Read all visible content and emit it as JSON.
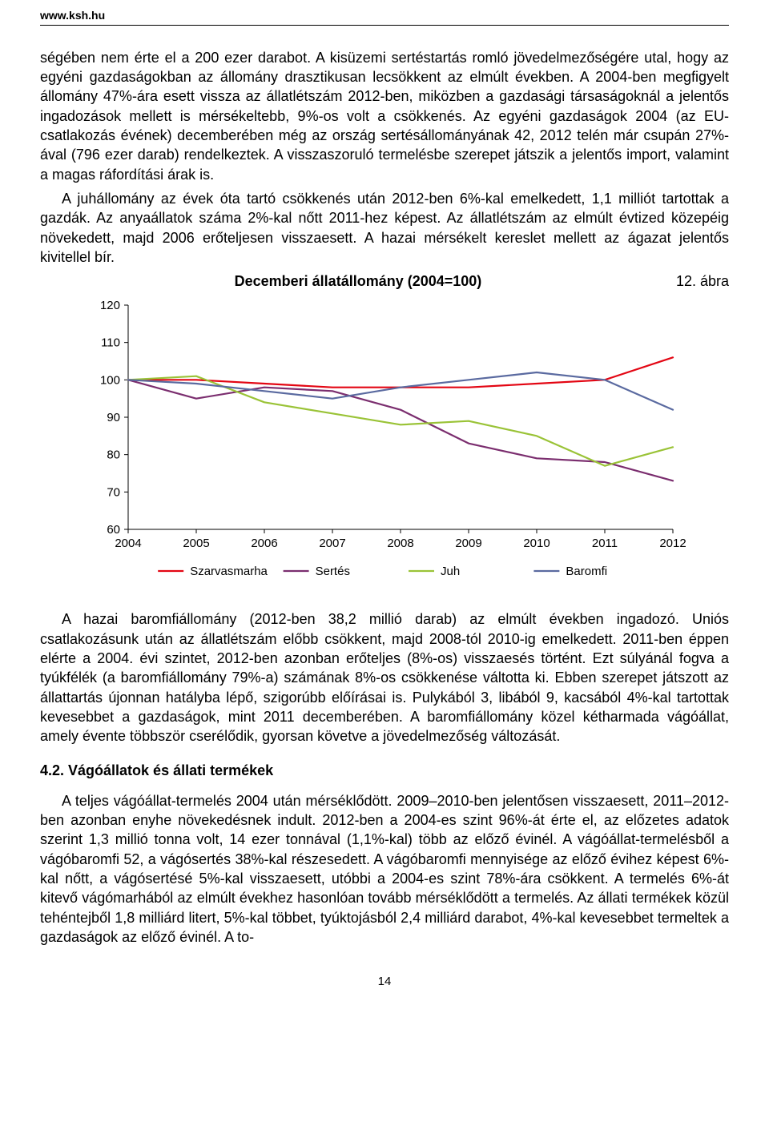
{
  "header": {
    "site_url": "www.ksh.hu"
  },
  "para1_a": "ségében nem érte el a 200 ezer darabot. A kisüzemi sertéstartás romló jövedelmezőségére utal, hogy az egyéni gazdaságokban az állomány drasztikusan lecsökkent az elmúlt években. A 2004-ben megfigyelt állomány 47%-ára esett vissza az állatlétszám 2012-ben, miközben a gazdasági társaságoknál a jelentős ingadozások mellett is mérsékeltebb, 9%-os volt a csökkenés. Az egyéni gazdaságok 2004 (az EU-csatlakozás évének) decemberében még az ország sertésállományának 42, 2012 telén már csupán 27%-ával (796 ezer darab) rendelkeztek. A visszaszoruló termelésbe szerepet játszik a jelentős import, valamint a magas ráfordítási árak is.",
  "para1_b": "A juhállomány az évek óta tartó csökkenés után 2012-ben 6%-kal emelkedett, 1,1 milliót tartottak a gazdák. Az anyaállatok száma 2%-kal nőtt 2011-hez képest. Az állatlétszám az elmúlt évtized közepéig növekedett, majd 2006 erőteljesen visszaesett. A hazai mérsékelt kereslet mellett az ágazat jelentős kivitellel bír.",
  "figure_label": "12. ábra",
  "chart": {
    "type": "line",
    "title": "Decemberi állatállomány (2004=100)",
    "y_unit_label": "%",
    "categories": [
      "2004",
      "2005",
      "2006",
      "2007",
      "2008",
      "2009",
      "2010",
      "2011",
      "2012"
    ],
    "ylim": [
      60,
      120
    ],
    "ytick_step": 10,
    "background_color": "#ffffff",
    "axis_color": "#000000",
    "grid": false,
    "line_width": 2.2,
    "series": [
      {
        "name": "Szarvasmarha",
        "color": "#e30613",
        "values": [
          100,
          100,
          99,
          98,
          98,
          98,
          99,
          100,
          106
        ]
      },
      {
        "name": "Sertés",
        "color": "#7b2e6f",
        "values": [
          100,
          95,
          98,
          97,
          92,
          83,
          79,
          78,
          73
        ]
      },
      {
        "name": "Juh",
        "color": "#9ac337",
        "values": [
          100,
          101,
          94,
          91,
          88,
          89,
          85,
          77,
          82
        ]
      },
      {
        "name": "Baromfi",
        "color": "#5a6aa0",
        "values": [
          100,
          99,
          97,
          95,
          98,
          100,
          102,
          100,
          92
        ]
      }
    ],
    "axis_fontsize": 15,
    "legend_fontsize": 15
  },
  "para2": "A hazai baromfiállomány (2012-ben 38,2 millió darab) az elmúlt években ingadozó. Uniós csatlakozásunk után az állatlétszám előbb csökkent, majd 2008-tól 2010-ig emelkedett. 2011-ben éppen elérte a 2004. évi szintet, 2012-ben azonban erőteljes (8%-os) visszaesés történt. Ezt súlyánál fogva a tyúkfélék (a baromfiállomány 79%-a) számának 8%-os csökkenése váltotta ki. Ebben szerepet játszott az állattartás újonnan hatályba lépő, szigorúbb előírásai is. Pulykából 3, libából 9, kacsából 4%-kal tartottak kevesebbet a gazdaságok, mint 2011 decemberében. A baromfiállomány közel kétharmada vágóállat, amely évente többször cserélődik, gyorsan követve a jövedelmezőség változását.",
  "section_heading": "4.2. Vágóállatok és állati termékek",
  "para3": "A teljes vágóállat-termelés 2004 után mérséklődött. 2009–2010-ben jelentősen visszaesett, 2011–2012-ben azonban enyhe növekedésnek indult. 2012-ben a 2004-es szint 96%-át érte el, az előzetes adatok szerint 1,3 millió tonna volt, 14 ezer tonnával (1,1%-kal) több az előző évinél. A vágóállat-termelésből a vágóbaromfi 52, a vágósertés 38%-kal részesedett. A vágóbaromfi mennyisége az előző évihez képest 6%-kal nőtt, a vágósertésé 5%-kal visszaesett, utóbbi a 2004-es szint 78%-ára csökkent. A termelés 6%-át kitevő vágómarhából az elmúlt évekhez hasonlóan tovább mérséklődött a termelés. Az állati termékek közül tehéntejből 1,8 milliárd litert, 5%-kal többet, tyúktojásból 2,4 milliárd darabot, 4%-kal kevesebbet termeltek a gazdaságok az előző évinél. A to-",
  "page_number": "14"
}
